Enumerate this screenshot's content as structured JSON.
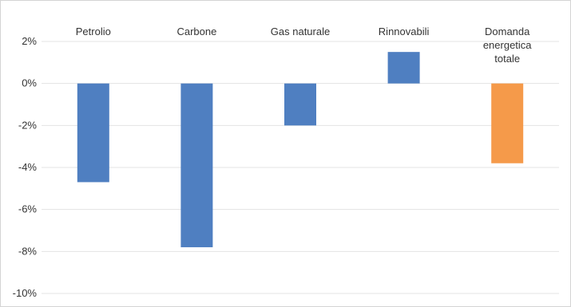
{
  "chart_data": {
    "type": "bar",
    "categories": [
      "Petrolio",
      "Carbone",
      "Gas naturale",
      "Rinnovabili",
      "Domanda energetica totale"
    ],
    "category_label_lines": [
      [
        "Petrolio"
      ],
      [
        "Carbone"
      ],
      [
        "Gas naturale"
      ],
      [
        "Rinnovabili"
      ],
      [
        "Domanda",
        "energetica",
        "totale"
      ]
    ],
    "values": [
      -4.7,
      -7.8,
      -2.0,
      1.5,
      -3.8
    ],
    "bar_colors": [
      "#4f7fc1",
      "#4f7fc1",
      "#4f7fc1",
      "#4f7fc1",
      "#f59a4a"
    ],
    "ylim": [
      -10,
      2
    ],
    "yticks": [
      2,
      0,
      -2,
      -4,
      -6,
      -8,
      -10
    ],
    "ytick_labels": [
      "2%",
      "0%",
      "-2%",
      "-4%",
      "-6%",
      "-8%",
      "-10%"
    ],
    "category_labels_position": "top",
    "grid": true,
    "title": "",
    "xlabel": "",
    "ylabel": ""
  }
}
